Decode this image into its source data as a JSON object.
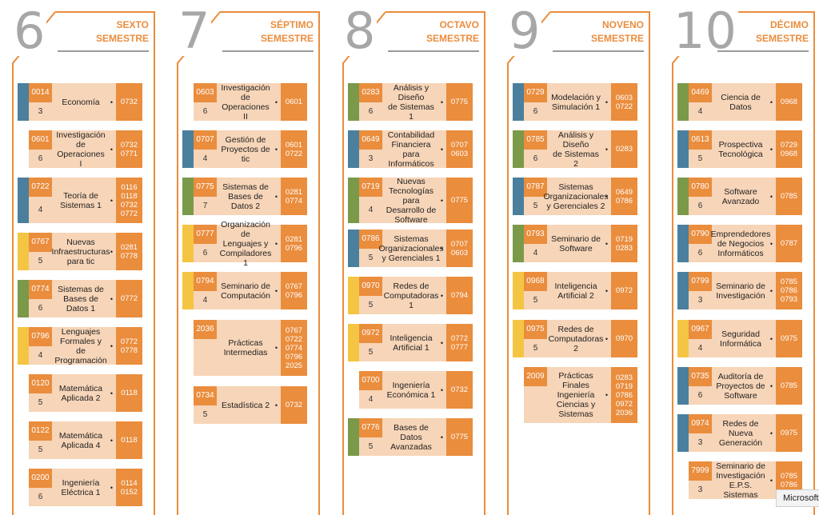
{
  "colors": {
    "accent_orange": "#ea8d3d",
    "light_peach": "#f7d5b8",
    "blue": "#4a7f9e",
    "green": "#7a9a4a",
    "yellow": "#f4c542",
    "number_gray": "#a7a7a7"
  },
  "columns": [
    {
      "number": "6",
      "title1": "SEXTO",
      "title2": "SEMESTRE",
      "cards": [
        {
          "code": "0014",
          "credits": "3",
          "name": [
            "Economía"
          ],
          "prereqs": [
            "0732"
          ],
          "accent": "blue"
        },
        {
          "code": "0601",
          "credits": "6",
          "name": [
            "Investigación de",
            "Operaciones I"
          ],
          "prereqs": [
            "0732",
            "0771"
          ],
          "accent": ""
        },
        {
          "code": "0722",
          "credits": "4",
          "name": [
            "Teoría de",
            "Sistemas 1"
          ],
          "prereqs": [
            "0116",
            "0118",
            "0732",
            "0772"
          ],
          "accent": "blue"
        },
        {
          "code": "0767",
          "credits": "5",
          "name": [
            "Nuevas",
            "Infraestructuras",
            "para tic"
          ],
          "prereqs": [
            "0281",
            "0778"
          ],
          "accent": "yellow"
        },
        {
          "code": "0774",
          "credits": "6",
          "name": [
            "Sistemas de",
            "Bases de Datos 1"
          ],
          "prereqs": [
            "0772"
          ],
          "accent": "green"
        },
        {
          "code": "0796",
          "credits": "4",
          "name": [
            "Lenguajes",
            "Formales y de",
            "Programación"
          ],
          "prereqs": [
            "0772",
            "0778"
          ],
          "accent": "yellow"
        },
        {
          "code": "0120",
          "credits": "5",
          "name": [
            "Matemática",
            "Aplicada 2"
          ],
          "prereqs": [
            "0118"
          ],
          "accent": ""
        },
        {
          "code": "0122",
          "credits": "5",
          "name": [
            "Matemática",
            "Aplicada 4"
          ],
          "prereqs": [
            "0118"
          ],
          "accent": ""
        },
        {
          "code": "0200",
          "credits": "6",
          "name": [
            "Ingeniería",
            "Eléctrica 1"
          ],
          "prereqs": [
            "0114",
            "0152"
          ],
          "accent": ""
        }
      ]
    },
    {
      "number": "7",
      "title1": "SÉPTIMO",
      "title2": "SEMESTRE",
      "cards": [
        {
          "code": "0603",
          "credits": "6",
          "name": [
            "Investigación de",
            "Operaciones II"
          ],
          "prereqs": [
            "0601"
          ],
          "accent": ""
        },
        {
          "code": "0707",
          "credits": "4",
          "name": [
            "Gestión de",
            "Proyectos de tic"
          ],
          "prereqs": [
            "0601",
            "0722"
          ],
          "accent": "blue"
        },
        {
          "code": "0775",
          "credits": "7",
          "name": [
            "Sistemas de",
            "Bases de Datos 2"
          ],
          "prereqs": [
            "0281",
            "0774"
          ],
          "accent": "green"
        },
        {
          "code": "0777",
          "credits": "6",
          "name": [
            "Organización de",
            "Lenguajes y",
            "Compiladores 1"
          ],
          "prereqs": [
            "0281",
            "0796"
          ],
          "accent": "yellow"
        },
        {
          "code": "0794",
          "credits": "4",
          "name": [
            "Seminario de",
            "Computación"
          ],
          "prereqs": [
            "0767",
            "0796"
          ],
          "accent": "yellow"
        },
        {
          "code": "2036",
          "credits": "",
          "name": [
            "Prácticas",
            "Intermedias"
          ],
          "prereqs": [
            "0767",
            "0722",
            "0774",
            "0796",
            "2025"
          ],
          "accent": ""
        },
        {
          "code": "0734",
          "credits": "5",
          "name": [
            "Estadística 2"
          ],
          "prereqs": [
            "0732"
          ],
          "accent": ""
        }
      ]
    },
    {
      "number": "8",
      "title1": "OCTAVO",
      "title2": "SEMESTRE",
      "cards": [
        {
          "code": "0283",
          "credits": "6",
          "name": [
            "Análisis y Diseño",
            "de Sistemas 1"
          ],
          "prereqs": [
            "0775"
          ],
          "accent": "green"
        },
        {
          "code": "0649",
          "credits": "3",
          "name": [
            "Contabilidad",
            "Financiera para",
            "Informáticos"
          ],
          "prereqs": [
            "0707",
            "0603"
          ],
          "accent": "blue"
        },
        {
          "code": "0719",
          "credits": "4",
          "name": [
            "Nuevas",
            "Tecnologías para",
            "Desarrollo de",
            "Software"
          ],
          "prereqs": [
            "0775"
          ],
          "accent": "green"
        },
        {
          "code": "0786",
          "credits": "5",
          "name": [
            "Sistemas",
            "Organizacionales",
            "y Gerenciales 1"
          ],
          "prereqs": [
            "0707",
            "0603"
          ],
          "accent": "blue"
        },
        {
          "code": "0970",
          "credits": "5",
          "name": [
            "Redes de",
            "Computadoras 1"
          ],
          "prereqs": [
            "0794"
          ],
          "accent": "yellow"
        },
        {
          "code": "0972",
          "credits": "5",
          "name": [
            "Inteligencia",
            "Artificial 1"
          ],
          "prereqs": [
            "0772",
            "0777"
          ],
          "accent": "yellow"
        },
        {
          "code": "0700",
          "credits": "4",
          "name": [
            "Ingeniería",
            "Económica 1"
          ],
          "prereqs": [
            "0732"
          ],
          "accent": ""
        },
        {
          "code": "0776",
          "credits": "5",
          "name": [
            "Bases de Datos",
            "Avanzadas"
          ],
          "prereqs": [
            "0775"
          ],
          "accent": "green"
        }
      ]
    },
    {
      "number": "9",
      "title1": "NOVENO",
      "title2": "SEMESTRE",
      "cards": [
        {
          "code": "0729",
          "credits": "6",
          "name": [
            "Modelación y",
            "Simulación 1"
          ],
          "prereqs": [
            "0603",
            "0722"
          ],
          "accent": "blue"
        },
        {
          "code": "0785",
          "credits": "6",
          "name": [
            "Análisis y Diseño",
            "de Sistemas 2"
          ],
          "prereqs": [
            "0283"
          ],
          "accent": "green"
        },
        {
          "code": "0787",
          "credits": "5",
          "name": [
            "Sistemas",
            "Organizacionales",
            "y Gerenciales 2"
          ],
          "prereqs": [
            "0649",
            "0786"
          ],
          "accent": "blue"
        },
        {
          "code": "0793",
          "credits": "4",
          "name": [
            "Seminario de",
            "Software"
          ],
          "prereqs": [
            "0719",
            "0283"
          ],
          "accent": "green"
        },
        {
          "code": "0968",
          "credits": "5",
          "name": [
            "Inteligencia",
            "Artificial 2"
          ],
          "prereqs": [
            "0972"
          ],
          "accent": "yellow"
        },
        {
          "code": "0975",
          "credits": "5",
          "name": [
            "Redes de",
            "Computadoras 2"
          ],
          "prereqs": [
            "0970"
          ],
          "accent": "yellow"
        },
        {
          "code": "2009",
          "credits": "",
          "name": [
            "Prácticas Finales",
            "Ingeniería",
            "Ciencias y",
            "Sistemas"
          ],
          "prereqs": [
            "0283",
            "0719",
            "0786",
            "0972",
            "2036"
          ],
          "accent": ""
        }
      ]
    },
    {
      "number": "10",
      "title1": "DÉCIMO",
      "title2": "SEMESTRE",
      "cards": [
        {
          "code": "0469",
          "credits": "4",
          "name": [
            "Ciencia de Datos"
          ],
          "prereqs": [
            "0968"
          ],
          "accent": "green"
        },
        {
          "code": "0613",
          "credits": "5",
          "name": [
            "Prospectiva",
            "Tecnológica"
          ],
          "prereqs": [
            "0729",
            "0968"
          ],
          "accent": "blue"
        },
        {
          "code": "0780",
          "credits": "6",
          "name": [
            "Software",
            "Avanzado"
          ],
          "prereqs": [
            "0785"
          ],
          "accent": "green"
        },
        {
          "code": "0790",
          "credits": "6",
          "name": [
            "Emprendedores",
            "de Negocios",
            "Informáticos"
          ],
          "prereqs": [
            "0787"
          ],
          "accent": "blue"
        },
        {
          "code": "0799",
          "credits": "3",
          "name": [
            "Seminario de",
            "Investigación"
          ],
          "prereqs": [
            "0785",
            "0786",
            "0793"
          ],
          "accent": "blue"
        },
        {
          "code": "0967",
          "credits": "4",
          "name": [
            "Seguridad",
            "Informática"
          ],
          "prereqs": [
            "0975"
          ],
          "accent": "yellow"
        },
        {
          "code": "0735",
          "credits": "6",
          "name": [
            "Auditoría de",
            "Proyectos de",
            "Software"
          ],
          "prereqs": [
            "0785"
          ],
          "accent": "blue"
        },
        {
          "code": "0974",
          "credits": "3",
          "name": [
            "Redes de Nueva",
            "Generación"
          ],
          "prereqs": [
            "0975"
          ],
          "accent": "blue"
        },
        {
          "code": "7999",
          "credits": "3",
          "name": [
            "Seminario de",
            "Investigación",
            "E.P.S. Sistemas"
          ],
          "prereqs": [
            "0785",
            "0786"
          ],
          "accent": ""
        }
      ]
    }
  ],
  "tooltip": "Microsoft"
}
